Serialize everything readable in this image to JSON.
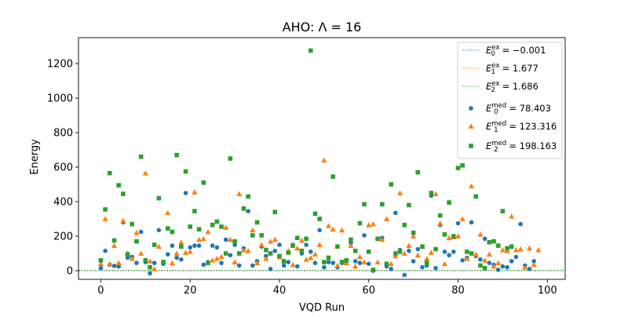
{
  "chart_data": {
    "type": "scatter",
    "title": "AHO: Λ = 16",
    "xlabel": "VQD Run",
    "ylabel": "Energy",
    "xlim": [
      -5,
      104
    ],
    "ylim": [
      -50,
      1350
    ],
    "xticks": [
      0,
      20,
      40,
      60,
      80,
      100
    ],
    "yticks": [
      0,
      200,
      400,
      600,
      800,
      1000,
      1200
    ],
    "grid": false,
    "legend_position": "upper-right",
    "reference_lines": [
      {
        "label_main": "E",
        "sub": "0",
        "sup": "ex",
        "value_text": " = −0.001",
        "value": -0.001,
        "color": "#1f77b4"
      },
      {
        "label_main": "E",
        "sub": "1",
        "sup": "ex",
        "value_text": " = 1.677",
        "value": 1.677,
        "color": "#ff7f0e"
      },
      {
        "label_main": "E",
        "sub": "2",
        "sup": "ex",
        "value_text": " = 1.686",
        "value": 1.686,
        "color": "#2ca02c"
      }
    ],
    "series": [
      {
        "name": "E0_med",
        "label_main": "E",
        "sub": "0",
        "sup": "med",
        "value_text": " = 78.403",
        "marker": "circle",
        "color": "#1f77b4",
        "values": [
          15,
          115,
          35,
          28,
          25,
          280,
          75,
          80,
          45,
          225,
          50,
          -15,
          45,
          235,
          40,
          95,
          145,
          75,
          65,
          450,
          135,
          145,
          145,
          35,
          50,
          145,
          135,
          45,
          180,
          90,
          150,
          30,
          130,
          345,
          30,
          55,
          140,
          85,
          10,
          115,
          150,
          30,
          50,
          150,
          25,
          100,
          150,
          110,
          45,
          235,
          20,
          50,
          45,
          20,
          45,
          50,
          160,
          55,
          45,
          205,
          40,
          0,
          185,
          190,
          25,
          10,
          335,
          120,
          -25,
          115,
          55,
          125,
          20,
          30,
          435,
          15,
          265,
          110,
          90,
          110,
          275,
          60,
          75,
          280,
          85,
          65,
          185,
          45,
          35,
          5,
          25,
          20,
          55,
          80,
          270,
          30,
          10,
          55
        ]
      },
      {
        "name": "E1_med",
        "label_main": "E",
        "sub": "1",
        "sup": "med",
        "value_text": " = 123.316",
        "marker": "triangle",
        "color": "#ff7f0e",
        "values": [
          40,
          300,
          40,
          145,
          45,
          290,
          100,
          70,
          220,
          100,
          565,
          55,
          10,
          140,
          50,
          335,
          45,
          100,
          165,
          105,
          110,
          455,
          180,
          185,
          225,
          60,
          70,
          80,
          250,
          180,
          50,
          445,
          120,
          115,
          235,
          45,
          150,
          70,
          170,
          180,
          80,
          55,
          115,
          35,
          130,
          175,
          65,
          75,
          95,
          150,
          640,
          260,
          240,
          30,
          235,
          45,
          145,
          25,
          80,
          50,
          265,
          270,
          50,
          180,
          300,
          40,
          85,
          450,
          100,
          145,
          200,
          90,
          140,
          70,
          105,
          445,
          275,
          40,
          190,
          195,
          200,
          300,
          70,
          490,
          95,
          210,
          60,
          95,
          25,
          45,
          120,
          115,
          315,
          120,
          125,
          20,
          130,
          35,
          120
        ]
      },
      {
        "name": "E2_med",
        "label_main": "E",
        "sub": "2",
        "sup": "med",
        "value_text": " = 198.163",
        "marker": "square",
        "color": "#2ca02c",
        "values": [
          60,
          355,
          565,
          175,
          495,
          445,
          95,
          270,
          170,
          660,
          60,
          20,
          150,
          420,
          50,
          245,
          225,
          670,
          140,
          575,
          255,
          345,
          240,
          510,
          45,
          265,
          285,
          255,
          100,
          650,
          170,
          100,
          360,
          430,
          205,
          280,
          205,
          120,
          100,
          340,
          85,
          55,
          105,
          145,
          190,
          115,
          185,
          1275,
          330,
          300,
          50,
          75,
          545,
          140,
          50,
          60,
          180,
          115,
          275,
          385,
          110,
          5,
          185,
          385,
          40,
          500,
          100,
          110,
          265,
          380,
          220,
          570,
          140,
          45,
          450,
          125,
          320,
          210,
          395,
          200,
          595,
          610,
          110,
          100,
          430,
          30,
          15,
          165,
          170,
          145,
          345,
          130,
          140
        ]
      }
    ]
  }
}
